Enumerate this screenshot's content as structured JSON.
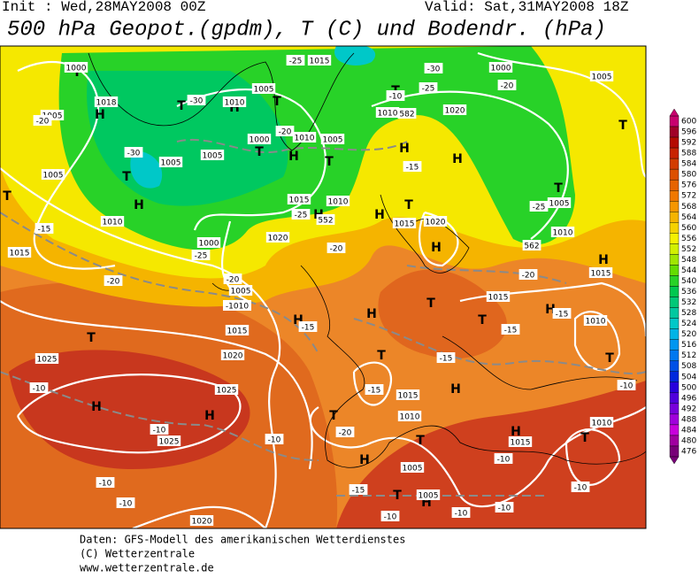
{
  "header": {
    "init": "Init : Wed,28MAY2008 00Z",
    "valid": "Valid: Sat,31MAY2008 18Z",
    "title": "500 hPa Geopot.(gpdm), T (C) und Bodendr. (hPa)"
  },
  "map": {
    "labels": [
      "T",
      "H",
      "T",
      "H",
      "T",
      "T",
      "H",
      "T",
      "T",
      "H",
      "T",
      "H",
      "T",
      "H",
      "T",
      "H",
      "H",
      "H",
      "T",
      "H",
      "T",
      "T",
      "H",
      "H",
      "H",
      "H",
      "T",
      "T",
      "H",
      "T",
      "T",
      "H",
      "T",
      "H",
      "T",
      "H",
      "T",
      "T",
      "H",
      "1000",
      "1005",
      "1018",
      "1005",
      "1010",
      "1015",
      "-20",
      "-15",
      "-20",
      "-30",
      "1005",
      "-30",
      "1010",
      "1005",
      "1000",
      "-20",
      "1010",
      "1005",
      "1005",
      "1000",
      "-25",
      "-20",
      "1005",
      "-1010",
      "1015",
      "1020",
      "-25",
      "1015",
      "-25",
      "1015",
      "1010",
      "1020",
      "-20",
      "1010",
      "582",
      "1020",
      "-30",
      "-25",
      "-10",
      "1000",
      "-20",
      "1005",
      "-25",
      "1005",
      "1010",
      "562",
      "-15",
      "1015",
      "1020",
      "-20",
      "1015",
      "1015",
      "-15",
      "1010",
      "-15",
      "1025",
      "-10",
      "1025",
      "-10",
      "1025",
      "-10",
      "-10",
      "-10",
      "1020",
      "-15",
      "-15",
      "-15",
      "1015",
      "1010",
      "-20",
      "1005",
      "-15",
      "1005",
      "-10",
      "-10",
      "-10",
      "1015",
      "1010",
      "-10",
      "-10",
      "-10",
      "552"
    ]
  },
  "colorbar": {
    "levels": [
      600,
      596,
      592,
      588,
      584,
      580,
      576,
      572,
      568,
      564,
      560,
      556,
      552,
      548,
      544,
      540,
      536,
      532,
      528,
      524,
      520,
      516,
      512,
      508,
      504,
      500,
      496,
      492,
      488,
      484,
      480,
      476
    ],
    "colors": [
      "#c8006e",
      "#a00028",
      "#b40a00",
      "#c82300",
      "#d23c00",
      "#dc5000",
      "#e66400",
      "#f07800",
      "#f59600",
      "#f5b400",
      "#f5d200",
      "#f5f000",
      "#d2f000",
      "#a0e600",
      "#64dc00",
      "#28d228",
      "#00c850",
      "#00c878",
      "#00c8a0",
      "#00c8c8",
      "#00b4e6",
      "#0096f0",
      "#0078f0",
      "#0050e6",
      "#0028dc",
      "#2800dc",
      "#5000dc",
      "#7800dc",
      "#a000dc",
      "#c800dc",
      "#a000a0",
      "#780078"
    ]
  },
  "footer": {
    "lines": [
      "Daten: GFS-Modell des amerikanischen Wetterdienstes",
      "(C) Wetterzentrale",
      "www.wetterzentrale.de"
    ]
  }
}
